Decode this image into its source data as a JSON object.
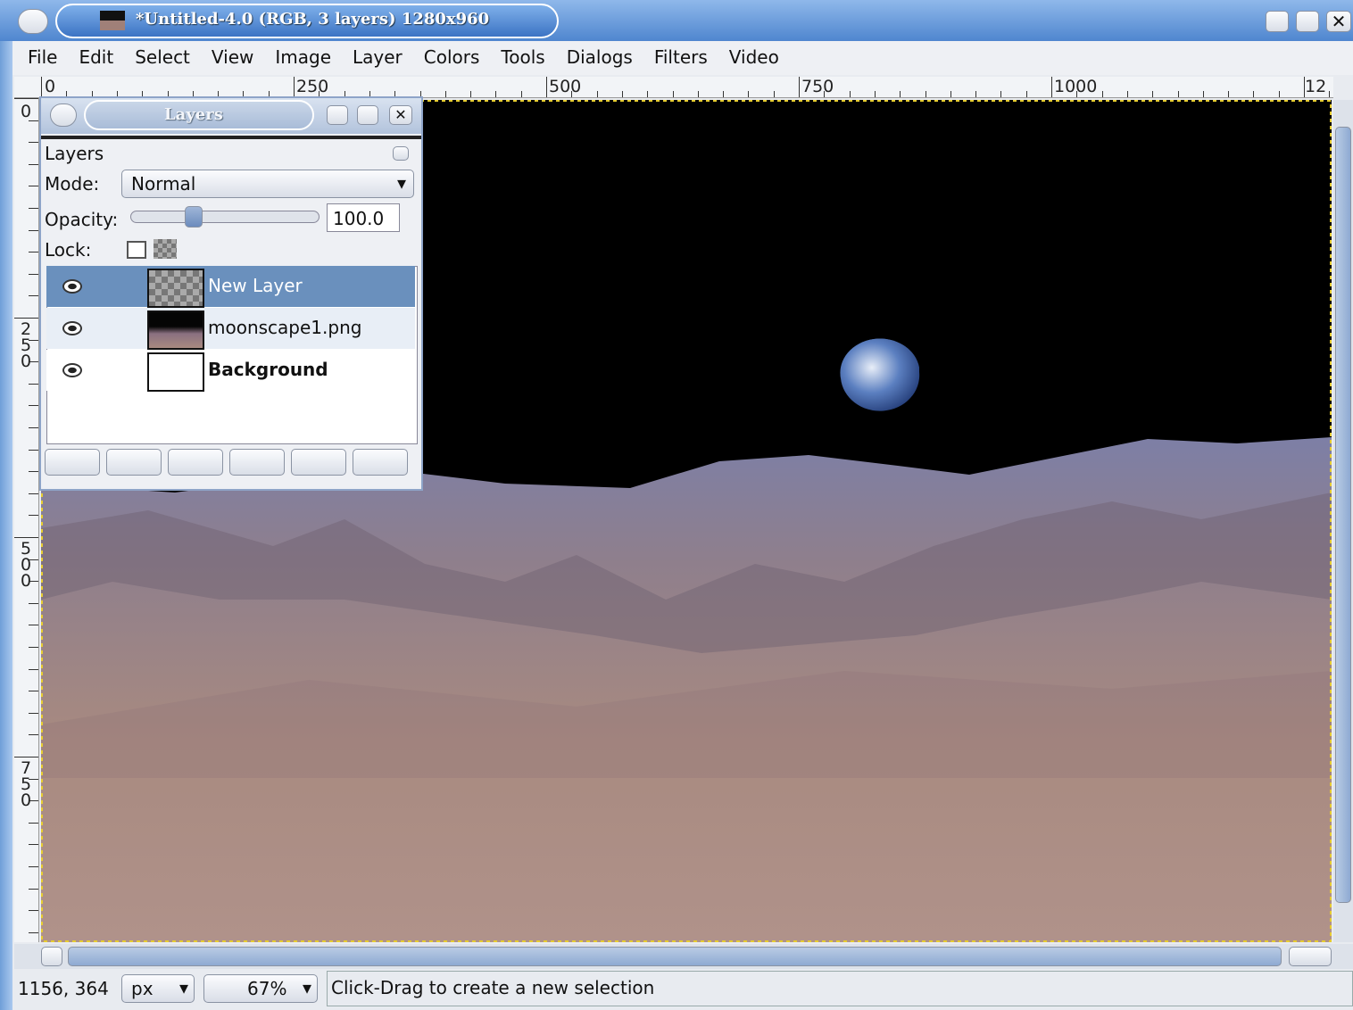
{
  "window": {
    "title": "*Untitled-4.0 (RGB, 3 layers) 1280x960",
    "menu": [
      "File",
      "Edit",
      "Select",
      "View",
      "Image",
      "Layer",
      "Colors",
      "Tools",
      "Dialogs",
      "Filters",
      "Video"
    ]
  },
  "rulers": {
    "horizontal": [
      "0",
      "250",
      "500",
      "750",
      "1000",
      "12"
    ],
    "vertical": [
      "0",
      "250",
      "500",
      "750"
    ]
  },
  "layers_dialog": {
    "title": "Layers",
    "heading": "Layers",
    "mode_label": "Mode:",
    "mode": "Normal",
    "opacity_label": "Opacity:",
    "opacity": "100.0",
    "lock_label": "Lock:",
    "layers": [
      {
        "name": "New Layer"
      },
      {
        "name": "moonscape1.png"
      },
      {
        "name": "Background"
      }
    ]
  },
  "status": {
    "coords": "1156, 364",
    "unit": "px",
    "zoom": "67%",
    "message": "Click-Drag to create a new selection"
  }
}
